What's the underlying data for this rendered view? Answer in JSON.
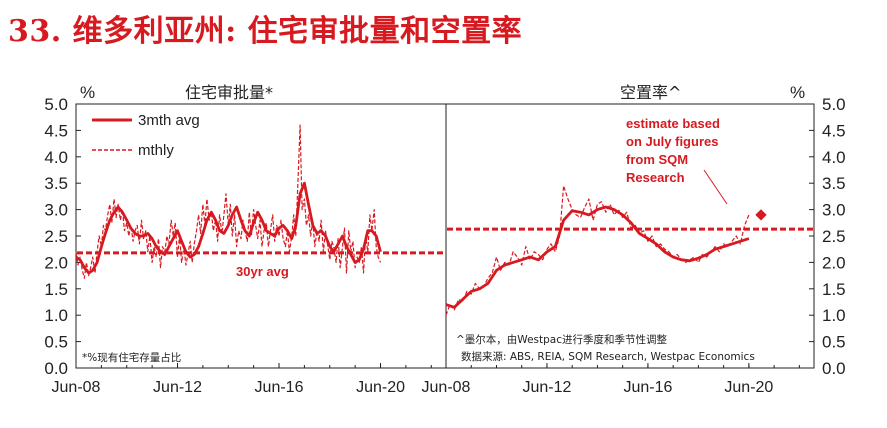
{
  "page": {
    "title": "33. 维多利亚州: 住宅审批量和空置率"
  },
  "colors": {
    "accent": "#d71920",
    "axis": "#222222"
  },
  "chart_data": [
    {
      "type": "line",
      "title": "住宅审批量*",
      "unit_left": "%",
      "ylim": [
        0,
        5
      ],
      "yticks": [
        "0.0",
        "0.5",
        "1.0",
        "1.5",
        "2.0",
        "2.5",
        "3.0",
        "3.5",
        "4.0",
        "4.5",
        "5.0"
      ],
      "xlim": [
        2008.42,
        2023.0
      ],
      "xticks": [
        {
          "label": "Jun-08",
          "x": 2008.42
        },
        {
          "label": "Jun-12",
          "x": 2012.42
        },
        {
          "label": "Jun-16",
          "x": 2016.42
        },
        {
          "label": "Jun-20",
          "x": 2020.42
        }
      ],
      "legend": [
        "3mth avg",
        "mthly"
      ],
      "legend_position": "top-left",
      "grid": false,
      "reference_line": {
        "label": "30yr avg",
        "value": 2.18
      },
      "note": "*%现有住宅存量占比",
      "series": [
        {
          "name": "3mth avg",
          "style": "solid",
          "x": [
            2008.42,
            2008.58,
            2008.75,
            2008.92,
            2009.08,
            2009.25,
            2009.42,
            2009.58,
            2009.75,
            2009.92,
            2010.08,
            2010.25,
            2010.42,
            2010.58,
            2010.75,
            2010.92,
            2011.08,
            2011.25,
            2011.42,
            2011.58,
            2011.75,
            2011.92,
            2012.08,
            2012.25,
            2012.42,
            2012.58,
            2012.75,
            2012.92,
            2013.08,
            2013.25,
            2013.42,
            2013.58,
            2013.75,
            2013.92,
            2014.08,
            2014.25,
            2014.42,
            2014.58,
            2014.75,
            2014.92,
            2015.08,
            2015.25,
            2015.42,
            2015.58,
            2015.75,
            2015.92,
            2016.08,
            2016.25,
            2016.42,
            2016.58,
            2016.75,
            2016.92,
            2017.08,
            2017.25,
            2017.42,
            2017.58,
            2017.75,
            2017.92,
            2018.08,
            2018.25,
            2018.42,
            2018.58,
            2018.75,
            2018.92,
            2019.08,
            2019.25,
            2019.42,
            2019.58,
            2019.75,
            2019.92,
            2020.08,
            2020.25,
            2020.42
          ],
          "values": [
            2.1,
            2.05,
            1.9,
            1.8,
            1.85,
            2.0,
            2.3,
            2.55,
            2.8,
            2.95,
            3.05,
            2.95,
            2.8,
            2.65,
            2.55,
            2.5,
            2.5,
            2.55,
            2.45,
            2.3,
            2.2,
            2.15,
            2.3,
            2.45,
            2.6,
            2.4,
            2.2,
            2.1,
            2.15,
            2.3,
            2.55,
            2.8,
            2.95,
            2.8,
            2.6,
            2.55,
            2.7,
            2.9,
            3.05,
            2.8,
            2.6,
            2.5,
            2.75,
            2.95,
            2.8,
            2.6,
            2.55,
            2.5,
            2.65,
            2.7,
            2.6,
            2.45,
            2.7,
            3.3,
            3.5,
            3.1,
            2.7,
            2.55,
            2.6,
            2.5,
            2.3,
            2.2,
            2.35,
            2.5,
            2.3,
            2.15,
            2.0,
            2.05,
            2.25,
            2.6,
            2.6,
            2.5,
            2.2
          ]
        },
        {
          "name": "mthly",
          "style": "dashed",
          "x": [
            2008.42,
            2008.5,
            2008.58,
            2008.67,
            2008.75,
            2008.83,
            2008.92,
            2009.0,
            2009.08,
            2009.17,
            2009.25,
            2009.33,
            2009.42,
            2009.5,
            2009.58,
            2009.67,
            2009.75,
            2009.83,
            2009.92,
            2010.0,
            2010.08,
            2010.17,
            2010.25,
            2010.33,
            2010.42,
            2010.5,
            2010.58,
            2010.67,
            2010.75,
            2010.83,
            2010.92,
            2011.0,
            2011.08,
            2011.17,
            2011.25,
            2011.33,
            2011.42,
            2011.5,
            2011.58,
            2011.67,
            2011.75,
            2011.83,
            2011.92,
            2012.0,
            2012.08,
            2012.17,
            2012.25,
            2012.33,
            2012.42,
            2012.5,
            2012.58,
            2012.67,
            2012.75,
            2012.83,
            2012.92,
            2013.0,
            2013.08,
            2013.17,
            2013.25,
            2013.33,
            2013.42,
            2013.5,
            2013.58,
            2013.67,
            2013.75,
            2013.83,
            2013.92,
            2014.0,
            2014.08,
            2014.17,
            2014.25,
            2014.33,
            2014.42,
            2014.5,
            2014.58,
            2014.67,
            2014.75,
            2014.83,
            2014.92,
            2015.0,
            2015.08,
            2015.17,
            2015.25,
            2015.33,
            2015.42,
            2015.5,
            2015.58,
            2015.67,
            2015.75,
            2015.83,
            2015.92,
            2016.0,
            2016.08,
            2016.17,
            2016.25,
            2016.33,
            2016.42,
            2016.5,
            2016.58,
            2016.67,
            2016.75,
            2016.83,
            2016.92,
            2017.0,
            2017.08,
            2017.17,
            2017.25,
            2017.33,
            2017.42,
            2017.5,
            2017.58,
            2017.67,
            2017.75,
            2017.83,
            2017.92,
            2018.0,
            2018.08,
            2018.17,
            2018.25,
            2018.33,
            2018.42,
            2018.5,
            2018.58,
            2018.67,
            2018.75,
            2018.83,
            2018.92,
            2019.0,
            2019.08,
            2019.17,
            2019.25,
            2019.33,
            2019.42,
            2019.5,
            2019.58,
            2019.67,
            2019.75,
            2019.83,
            2019.92,
            2020.0,
            2020.08,
            2020.17,
            2020.25,
            2020.33,
            2020.42
          ],
          "values": [
            2.2,
            1.95,
            2.1,
            1.85,
            1.7,
            2.0,
            1.75,
            1.9,
            2.1,
            1.8,
            2.2,
            2.5,
            2.3,
            2.7,
            2.6,
            2.9,
            3.1,
            2.75,
            3.2,
            2.85,
            3.1,
            2.8,
            3.0,
            2.6,
            2.75,
            2.5,
            2.7,
            2.4,
            2.6,
            2.7,
            2.35,
            2.8,
            2.45,
            2.6,
            2.2,
            2.5,
            2.0,
            2.3,
            2.1,
            2.45,
            1.9,
            2.3,
            2.2,
            2.5,
            2.35,
            2.8,
            2.5,
            2.75,
            2.1,
            2.5,
            2.0,
            2.3,
            1.95,
            2.15,
            2.4,
            2.0,
            2.35,
            2.6,
            2.9,
            2.55,
            3.1,
            2.7,
            3.2,
            2.8,
            2.95,
            2.6,
            2.8,
            2.4,
            2.9,
            2.55,
            2.9,
            3.3,
            2.7,
            3.1,
            2.5,
            2.9,
            2.3,
            2.6,
            2.45,
            2.8,
            2.6,
            2.4,
            2.95,
            2.5,
            3.0,
            2.7,
            2.45,
            2.8,
            2.3,
            2.6,
            2.75,
            2.3,
            2.6,
            2.9,
            2.4,
            2.7,
            2.5,
            2.8,
            2.45,
            2.3,
            2.6,
            2.2,
            2.5,
            2.9,
            2.5,
            3.6,
            4.6,
            3.0,
            3.2,
            2.7,
            2.9,
            2.5,
            2.8,
            2.3,
            2.6,
            2.4,
            2.8,
            2.2,
            2.6,
            2.35,
            2.05,
            2.4,
            2.3,
            2.0,
            2.45,
            1.9,
            2.3,
            2.65,
            1.8,
            2.6,
            2.2,
            2.4,
            1.9,
            2.1,
            2.0,
            2.3,
            1.8,
            2.5,
            2.2,
            2.9,
            2.6,
            3.0,
            2.3,
            2.1,
            2.0
          ]
        }
      ]
    },
    {
      "type": "line",
      "title": "空置率^",
      "unit_right": "%",
      "ylim": [
        0,
        5
      ],
      "yticks": [
        "0.0",
        "0.5",
        "1.0",
        "1.5",
        "2.0",
        "2.5",
        "3.0",
        "3.5",
        "4.0",
        "4.5",
        "5.0"
      ],
      "xlim": [
        2008.42,
        2023.0
      ],
      "xticks": [
        {
          "label": "Jun-08",
          "x": 2008.42
        },
        {
          "label": "Jun-12",
          "x": 2012.42
        },
        {
          "label": "Jun-16",
          "x": 2016.42
        },
        {
          "label": "Jun-20",
          "x": 2020.42
        }
      ],
      "grid": false,
      "reference_line": {
        "value": 2.63
      },
      "annotation": {
        "text": [
          "estimate based",
          "on July figures",
          "from SQM",
          "Research"
        ],
        "point": {
          "x": 2020.9,
          "y": 2.9
        }
      },
      "notes": [
        "^墨尔本，由Westpac进行季度和季节性调整",
        "数据来源: ABS, REIA, SQM Research, Westpac Economics"
      ],
      "series": [
        {
          "name": "3mth avg",
          "style": "solid",
          "x": [
            2008.42,
            2008.75,
            2009.08,
            2009.42,
            2009.75,
            2010.08,
            2010.42,
            2010.75,
            2011.08,
            2011.42,
            2011.75,
            2012.08,
            2012.42,
            2012.75,
            2013.08,
            2013.42,
            2013.75,
            2014.08,
            2014.42,
            2014.75,
            2015.08,
            2015.42,
            2015.75,
            2016.08,
            2016.42,
            2016.75,
            2017.08,
            2017.42,
            2017.75,
            2018.08,
            2018.42,
            2018.75,
            2019.08,
            2019.42,
            2019.75,
            2020.08,
            2020.42
          ],
          "values": [
            1.2,
            1.15,
            1.3,
            1.45,
            1.5,
            1.6,
            1.85,
            1.95,
            2.0,
            2.05,
            2.1,
            2.05,
            2.2,
            2.3,
            2.8,
            2.98,
            2.95,
            2.9,
            3.0,
            3.05,
            3.0,
            2.9,
            2.75,
            2.55,
            2.45,
            2.35,
            2.2,
            2.1,
            2.05,
            2.03,
            2.08,
            2.15,
            2.25,
            2.3,
            2.35,
            2.4,
            2.45
          ]
        },
        {
          "name": "mthly",
          "style": "dashed",
          "x": [
            2008.42,
            2008.58,
            2008.75,
            2008.92,
            2009.08,
            2009.25,
            2009.42,
            2009.58,
            2009.75,
            2009.92,
            2010.08,
            2010.25,
            2010.42,
            2010.58,
            2010.75,
            2010.92,
            2011.08,
            2011.25,
            2011.42,
            2011.58,
            2011.75,
            2011.92,
            2012.08,
            2012.25,
            2012.42,
            2012.58,
            2012.75,
            2012.92,
            2013.08,
            2013.25,
            2013.42,
            2013.58,
            2013.75,
            2013.92,
            2014.08,
            2014.25,
            2014.42,
            2014.58,
            2014.75,
            2014.92,
            2015.08,
            2015.25,
            2015.42,
            2015.58,
            2015.75,
            2015.92,
            2016.08,
            2016.25,
            2016.42,
            2016.58,
            2016.75,
            2016.92,
            2017.08,
            2017.25,
            2017.42,
            2017.58,
            2017.75,
            2017.92,
            2018.08,
            2018.25,
            2018.42,
            2018.58,
            2018.75,
            2018.92,
            2019.08,
            2019.25,
            2019.42,
            2019.58,
            2019.75,
            2019.92,
            2020.08,
            2020.25,
            2020.42
          ],
          "values": [
            1.0,
            1.2,
            1.1,
            1.3,
            1.25,
            1.45,
            1.4,
            1.6,
            1.5,
            1.55,
            1.7,
            1.8,
            2.1,
            1.85,
            2.0,
            1.95,
            2.2,
            2.1,
            1.95,
            2.3,
            2.05,
            2.2,
            2.15,
            2.05,
            2.25,
            2.35,
            2.2,
            2.5,
            3.45,
            3.2,
            3.0,
            2.9,
            2.85,
            3.05,
            3.2,
            2.8,
            3.1,
            3.15,
            2.95,
            3.1,
            2.9,
            3.0,
            2.85,
            2.95,
            2.65,
            2.7,
            2.55,
            2.6,
            2.4,
            2.5,
            2.3,
            2.35,
            2.25,
            2.2,
            2.1,
            2.15,
            2.05,
            2.0,
            2.05,
            2.1,
            2.0,
            2.15,
            2.1,
            2.2,
            2.3,
            2.2,
            2.35,
            2.3,
            2.4,
            2.5,
            2.35,
            2.7,
            2.9
          ]
        },
        {
          "name": "estimate",
          "style": "point",
          "x": [
            2020.9
          ],
          "values": [
            2.9
          ]
        }
      ]
    }
  ]
}
